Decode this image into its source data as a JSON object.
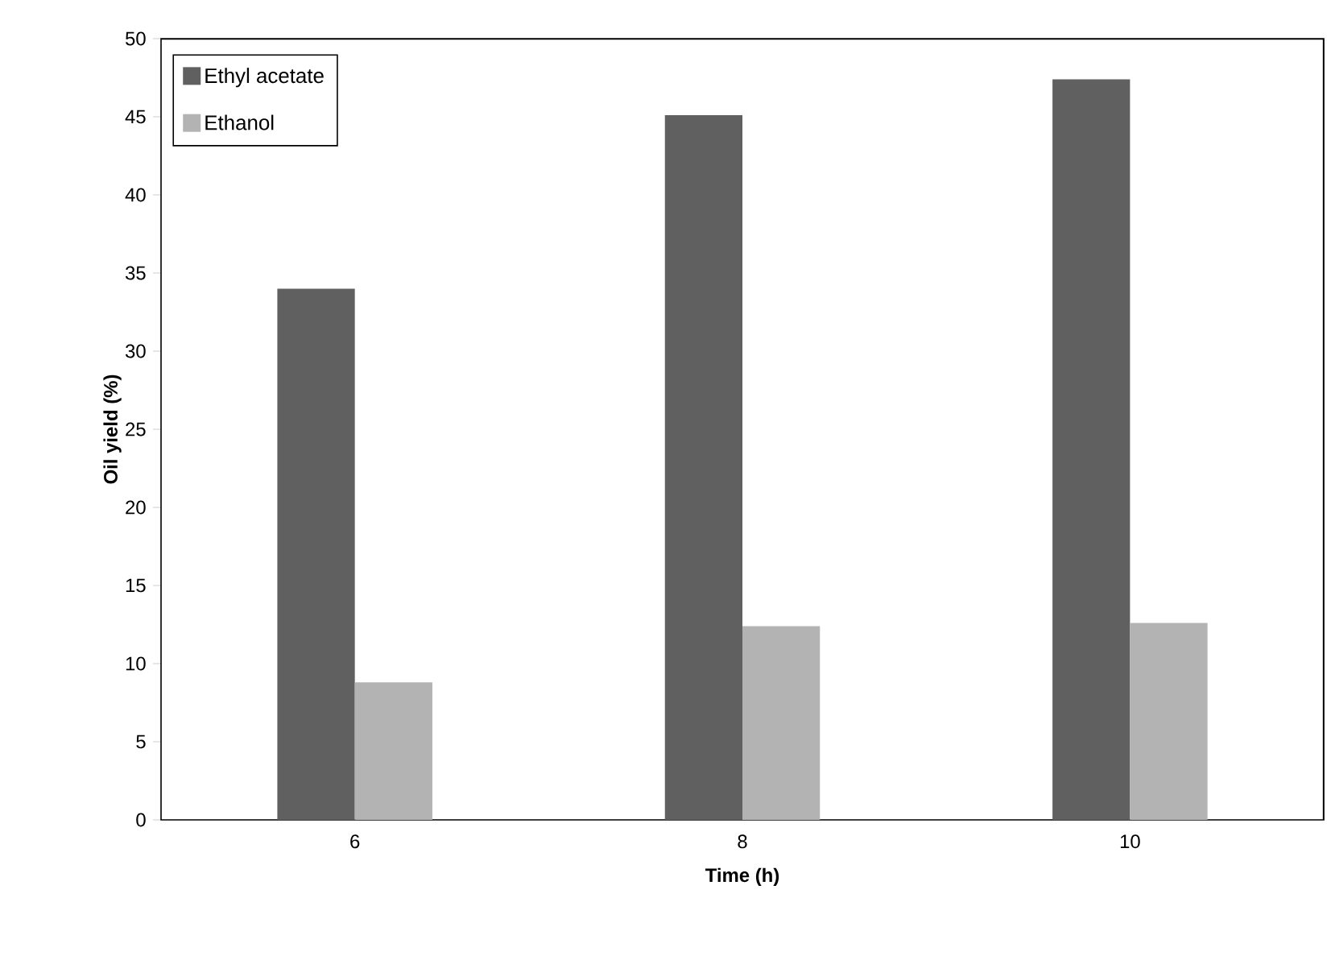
{
  "chart_data": {
    "type": "bar",
    "xlabel": "Time (h)",
    "ylabel": "Oil yield  (%)",
    "categories": [
      "6",
      "8",
      "10"
    ],
    "series": [
      {
        "name": "Ethyl acetate",
        "color": "#606060",
        "values": [
          34.0,
          45.1,
          47.4
        ]
      },
      {
        "name": "Ethanol",
        "color": "#b3b3b3",
        "values": [
          8.8,
          12.4,
          12.6
        ]
      }
    ],
    "ylim": [
      0,
      50
    ],
    "yticks": [
      0,
      5,
      10,
      15,
      20,
      25,
      30,
      35,
      40,
      45,
      50
    ],
    "legend": "top left",
    "grid": false
  }
}
